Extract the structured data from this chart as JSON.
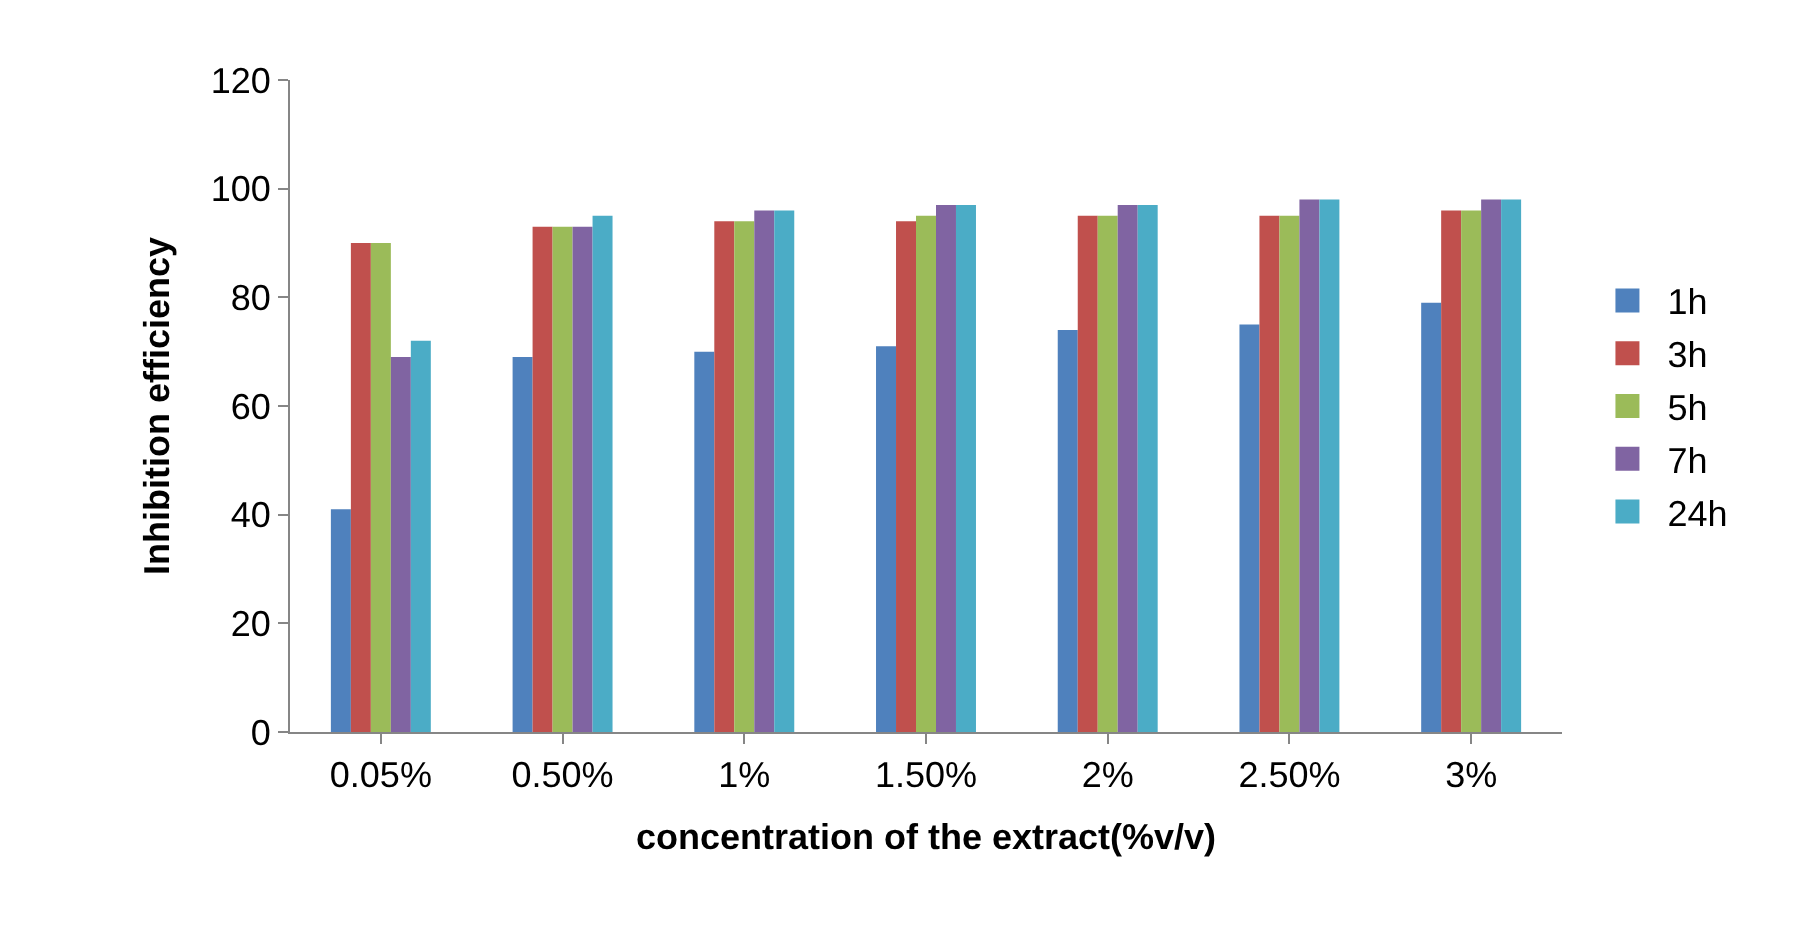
{
  "chart_data": {
    "type": "bar",
    "xlabel": "concentration of the extract(%v/v)",
    "ylabel": "Inhibition efficiency",
    "categories": [
      "0.05%",
      "0.50%",
      "1%",
      "1.50%",
      "2%",
      "2.50%",
      "3%"
    ],
    "series": [
      {
        "name": "1h",
        "color": "#4f81bd",
        "values": [
          41,
          69,
          70,
          71,
          74,
          75,
          79
        ]
      },
      {
        "name": "3h",
        "color": "#c0504d",
        "values": [
          90,
          93,
          94,
          94,
          95,
          95,
          96
        ]
      },
      {
        "name": "5h",
        "color": "#9bbb59",
        "values": [
          90,
          93,
          94,
          95,
          95,
          95,
          96
        ]
      },
      {
        "name": "7h",
        "color": "#8064a2",
        "values": [
          69,
          93,
          96,
          97,
          97,
          98,
          98
        ]
      },
      {
        "name": "24h",
        "color": "#4bacc6",
        "values": [
          72,
          95,
          96,
          97,
          97,
          98,
          98
        ]
      }
    ],
    "ylim": [
      0,
      120
    ],
    "yticks": [
      0,
      20,
      40,
      60,
      80,
      100,
      120
    ],
    "legend": "right"
  }
}
